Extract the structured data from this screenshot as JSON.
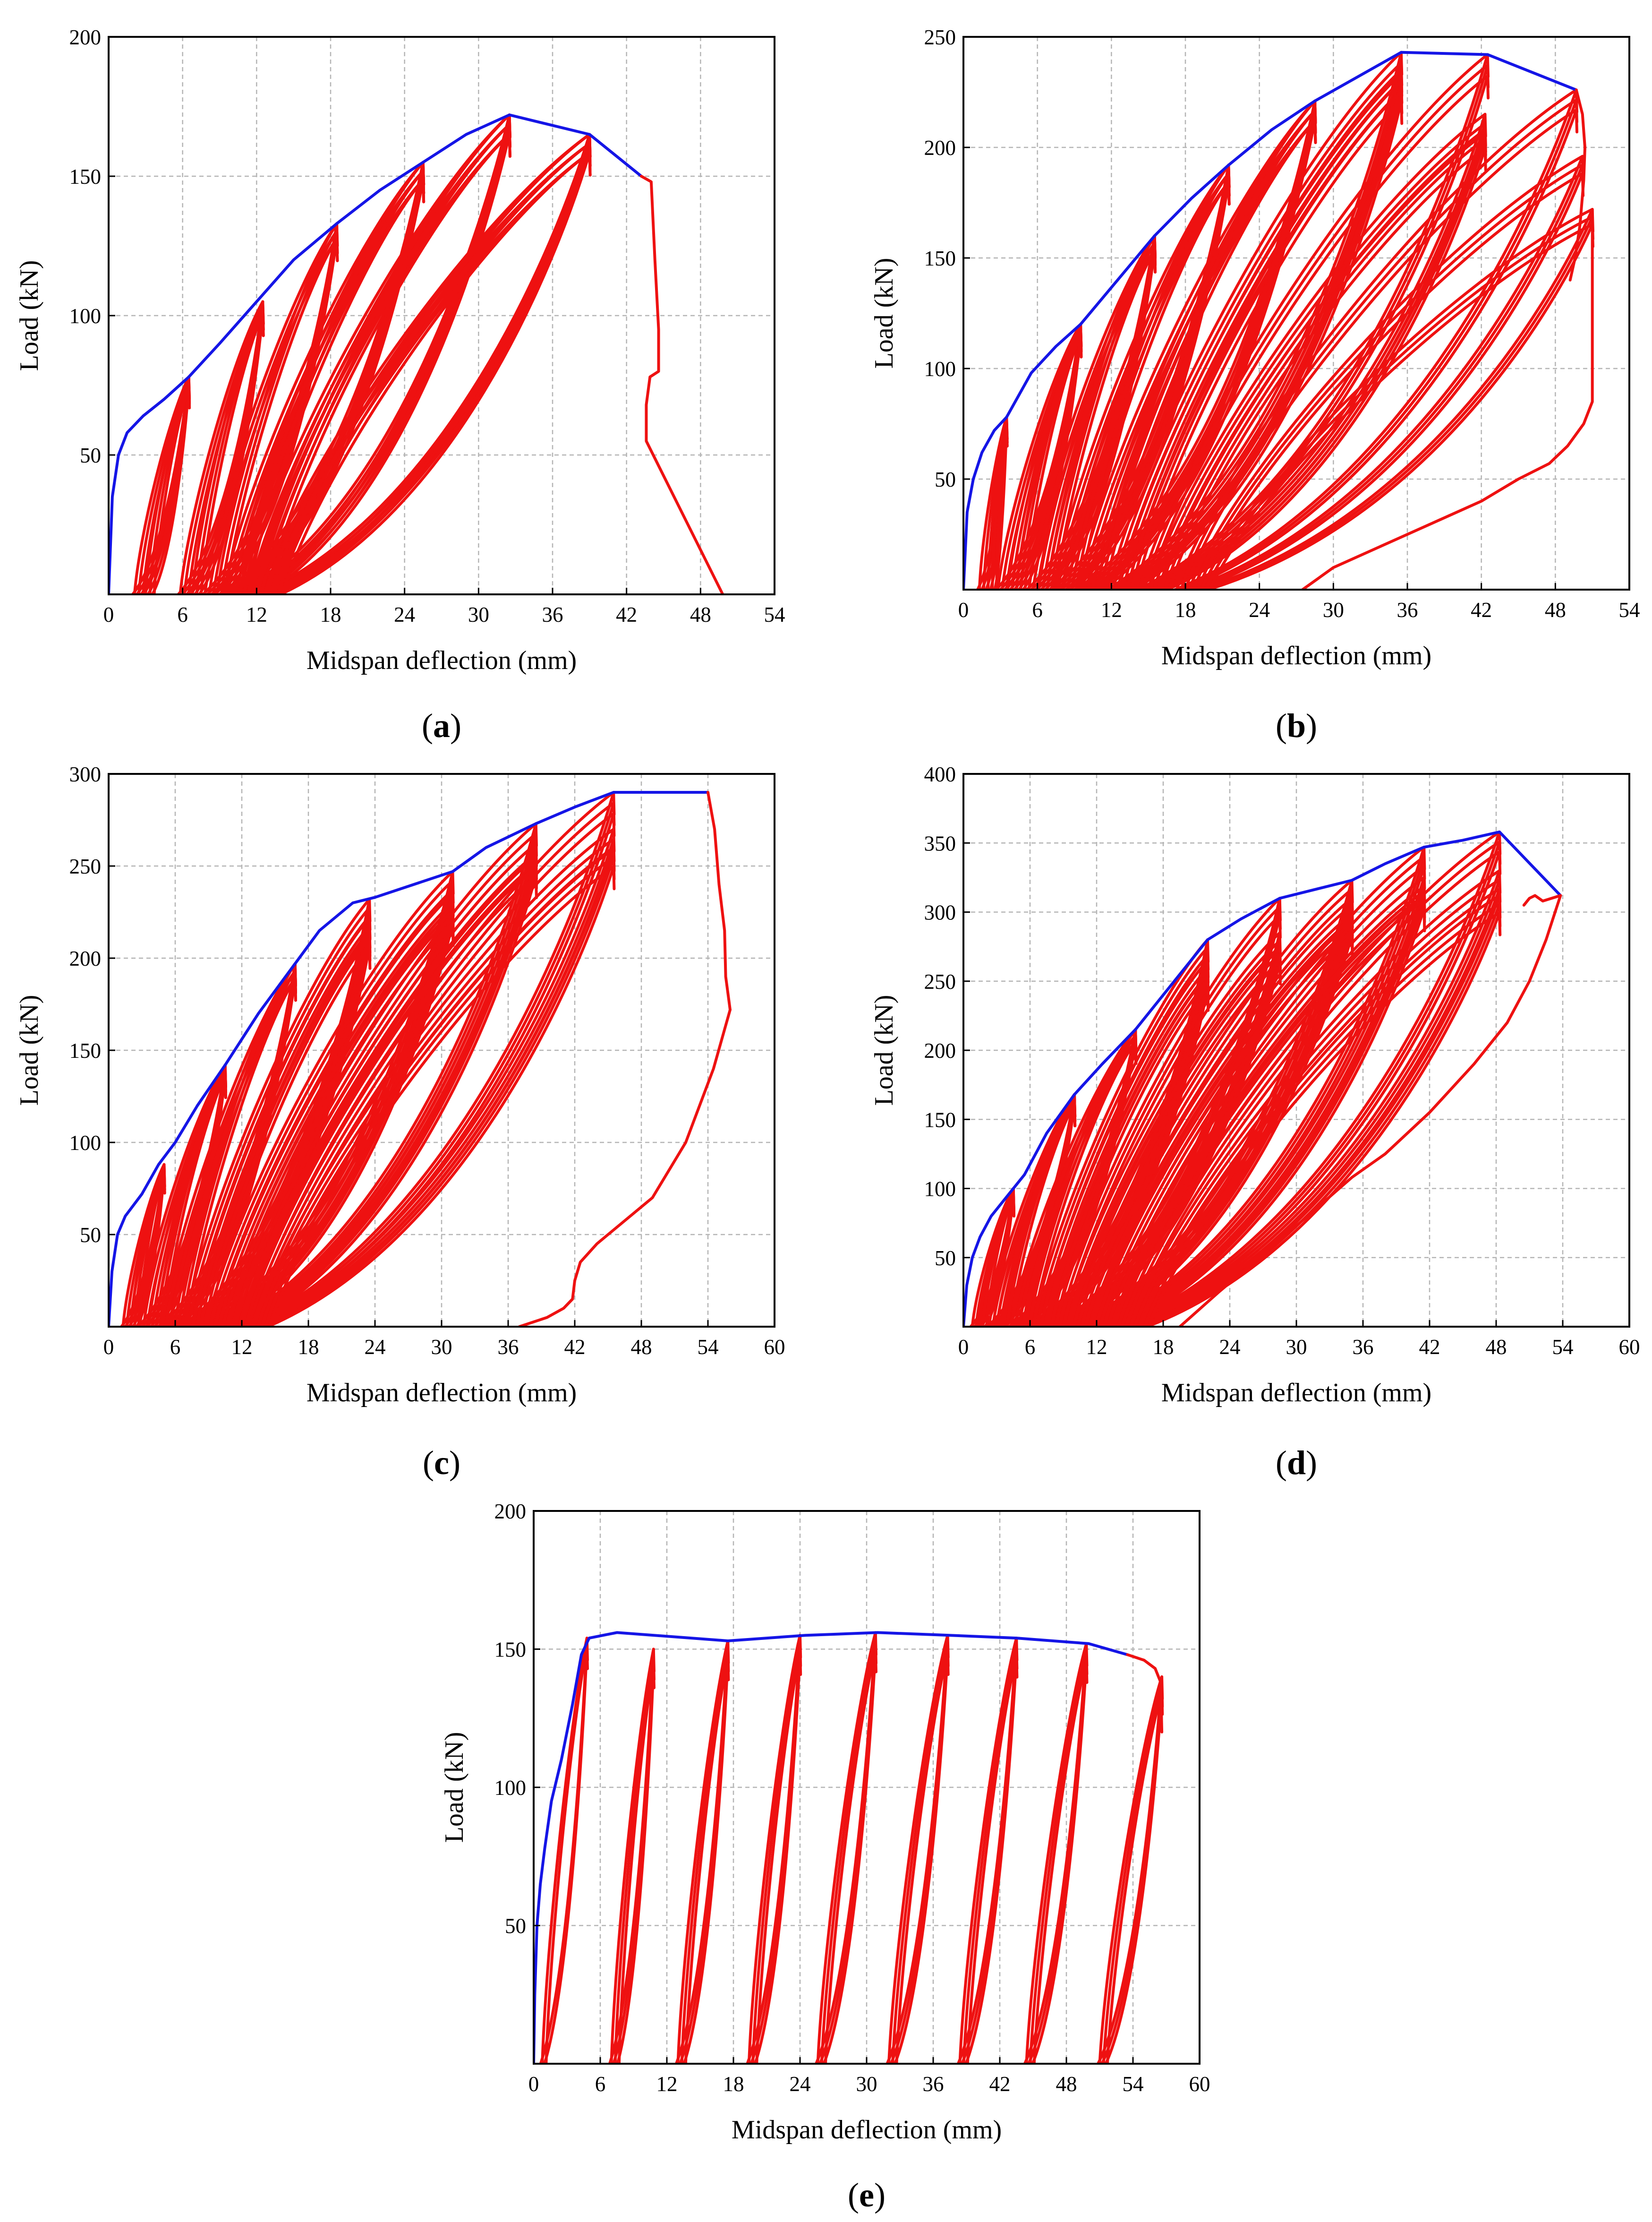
{
  "colors": {
    "hysteresis": "#ee1111",
    "envelope": "#1515e6",
    "grid": "#b5b5b5"
  },
  "chart_data": [
    {
      "id": "a",
      "type": "line",
      "panel_label": "a",
      "xlabel": "Midspan deflection (mm)",
      "ylabel": "Load (kN)",
      "xlim": [
        0,
        54
      ],
      "ylim": [
        0,
        200
      ],
      "xticks": [
        0,
        6,
        12,
        18,
        24,
        30,
        36,
        42,
        48,
        54
      ],
      "yticks": [
        50,
        100,
        150,
        200
      ],
      "series": [
        {
          "name": "Envelope",
          "x": [
            0,
            0.3,
            0.8,
            1.5,
            2.8,
            4.5,
            6.5,
            9,
            12,
            15,
            18.5,
            22,
            25.5,
            29,
            32.5,
            39,
            43.2
          ],
          "y": [
            0,
            35,
            50,
            58,
            64,
            70,
            78,
            90,
            105,
            120,
            133,
            145,
            155,
            165,
            172,
            165,
            150
          ]
        },
        {
          "name": "Softening",
          "x": [
            43.2,
            44,
            44.3,
            44.6,
            44.6,
            43.9,
            43.6,
            43.6,
            49.8
          ],
          "y": [
            150,
            148,
            120,
            95,
            80,
            78,
            68,
            55,
            0
          ]
        }
      ],
      "cycles": [
        [
          2.3,
          6.5,
          78,
          3
        ],
        [
          3.2,
          6.5,
          78,
          3
        ],
        [
          6.0,
          12.5,
          105,
          3
        ],
        [
          7.0,
          12.5,
          105,
          3
        ],
        [
          8.0,
          18.5,
          133,
          3
        ],
        [
          9.0,
          18.5,
          133,
          3
        ],
        [
          9.5,
          25.5,
          155,
          3
        ],
        [
          10.2,
          25.5,
          155,
          3
        ],
        [
          10.8,
          25.5,
          155,
          3
        ],
        [
          11.2,
          32.5,
          172,
          3
        ],
        [
          11.8,
          32.5,
          172,
          3
        ],
        [
          12.3,
          32.5,
          172,
          3
        ],
        [
          12.5,
          39,
          165,
          3
        ],
        [
          13.0,
          39,
          165,
          3
        ],
        [
          13.6,
          39,
          165,
          3
        ]
      ]
    },
    {
      "id": "b",
      "type": "line",
      "panel_label": "b",
      "xlabel": "Midspan deflection (mm)",
      "ylabel": "Load (kN)",
      "xlim": [
        0,
        54
      ],
      "ylim": [
        0,
        250
      ],
      "xticks": [
        0,
        6,
        12,
        18,
        24,
        30,
        36,
        42,
        48,
        54
      ],
      "yticks": [
        50,
        100,
        150,
        200,
        250
      ],
      "series": [
        {
          "name": "Envelope",
          "x": [
            0,
            0.3,
            0.8,
            1.5,
            2.5,
            3.5,
            5.5,
            7.5,
            9.5,
            12.5,
            15.5,
            18.5,
            21.5,
            25,
            28.5,
            32,
            35.5,
            42.5,
            49.7
          ],
          "y": [
            0,
            35,
            50,
            62,
            72,
            78,
            98,
            110,
            120,
            140,
            160,
            177,
            192,
            208,
            221,
            232,
            243,
            242,
            226
          ]
        },
        {
          "name": "Softening",
          "x": [
            49.7,
            50.2,
            50.4,
            50.3,
            50.0,
            49.6,
            49.2
          ],
          "y": [
            226,
            215,
            200,
            185,
            165,
            150,
            140
          ]
        },
        {
          "name": "Unload",
          "x": [
            51.0,
            51.0,
            50.3,
            49.0,
            47.5,
            45.0,
            42.0,
            38.0,
            34.0,
            30.0,
            27.5
          ],
          "y": [
            172,
            85,
            75,
            65,
            57,
            50,
            40,
            30,
            20,
            10,
            0
          ]
        }
      ],
      "cycles": [
        [
          1.5,
          3.5,
          78,
          3
        ],
        [
          2.2,
          3.5,
          78,
          3
        ],
        [
          3.0,
          9.5,
          120,
          3
        ],
        [
          3.8,
          9.5,
          120,
          3
        ],
        [
          4.5,
          9.5,
          120,
          3
        ],
        [
          5.5,
          15.5,
          160,
          3
        ],
        [
          6.3,
          15.5,
          160,
          3
        ],
        [
          7.0,
          15.5,
          160,
          3
        ],
        [
          7.5,
          21.5,
          192,
          3
        ],
        [
          8.3,
          21.5,
          192,
          3
        ],
        [
          9.0,
          21.5,
          192,
          3
        ],
        [
          9.5,
          28.5,
          221,
          3
        ],
        [
          10.3,
          28.5,
          221,
          3
        ],
        [
          11.0,
          28.5,
          221,
          3
        ],
        [
          12.0,
          35.5,
          243,
          3
        ],
        [
          12.8,
          35.5,
          235,
          3
        ],
        [
          13.5,
          35.5,
          230,
          3
        ],
        [
          14.5,
          42.5,
          242,
          3
        ],
        [
          15.3,
          42.3,
          215,
          3
        ],
        [
          16.2,
          42.3,
          208,
          3
        ],
        [
          17.5,
          49.7,
          226,
          3
        ],
        [
          18.5,
          50.2,
          196,
          3
        ],
        [
          19.5,
          51.0,
          172,
          3
        ]
      ]
    },
    {
      "id": "c",
      "type": "line",
      "panel_label": "c",
      "xlabel": "Midspan deflection (mm)",
      "ylabel": "Load (kN)",
      "xlim": [
        0,
        60
      ],
      "ylim": [
        0,
        300
      ],
      "xticks": [
        0,
        6,
        12,
        18,
        24,
        30,
        36,
        42,
        48,
        54,
        60
      ],
      "yticks": [
        50,
        100,
        150,
        200,
        250,
        300
      ],
      "series": [
        {
          "name": "Envelope",
          "x": [
            0,
            0.3,
            0.8,
            1.5,
            3,
            4.5,
            6,
            8,
            10.5,
            13.5,
            16.8,
            19,
            22,
            24,
            27.5,
            31,
            34,
            38.5,
            42,
            45.5,
            54.0
          ],
          "y": [
            0,
            30,
            50,
            60,
            72,
            88,
            100,
            120,
            142,
            170,
            197,
            215,
            230,
            233,
            240,
            247,
            260,
            273,
            282,
            290,
            290
          ]
        },
        {
          "name": "Softening",
          "x": [
            54.0,
            54.6,
            55.0,
            55.5,
            55.6,
            56.0
          ],
          "y": [
            290,
            270,
            240,
            215,
            190,
            172
          ]
        },
        {
          "name": "Unload",
          "x": [
            56.0,
            54.5,
            52.0,
            49.0,
            46.0,
            44.0,
            42.5,
            42.0,
            41.8,
            41.0,
            39.5,
            37.0
          ],
          "y": [
            172,
            140,
            100,
            70,
            55,
            45,
            35,
            25,
            15,
            10,
            5,
            0
          ]
        }
      ],
      "cycles": [
        [
          1.5,
          5.0,
          88,
          3
        ],
        [
          2.2,
          5.0,
          88,
          3
        ],
        [
          3.0,
          10.5,
          142,
          3
        ],
        [
          3.8,
          10.5,
          142,
          3
        ],
        [
          4.5,
          10.5,
          142,
          3
        ],
        [
          5.0,
          16.8,
          197,
          3
        ],
        [
          5.8,
          16.8,
          197,
          3
        ],
        [
          6.5,
          16.8,
          197,
          3
        ],
        [
          7.0,
          23.5,
          232,
          3
        ],
        [
          7.8,
          23.5,
          222,
          3
        ],
        [
          8.5,
          23.5,
          215,
          3
        ],
        [
          9.0,
          31.0,
          247,
          3
        ],
        [
          9.8,
          31.0,
          235,
          3
        ],
        [
          10.5,
          31.0,
          228,
          3
        ],
        [
          11.0,
          38.5,
          273,
          3
        ],
        [
          11.6,
          38.5,
          262,
          3
        ],
        [
          12.2,
          38.5,
          255,
          3
        ],
        [
          12.8,
          45.5,
          290,
          3
        ],
        [
          13.3,
          45.5,
          270,
          3
        ],
        [
          14.0,
          45.5,
          260,
          3
        ]
      ]
    },
    {
      "id": "d",
      "type": "line",
      "panel_label": "d",
      "xlabel": "Midspan deflection (mm)",
      "ylabel": "Load (kN)",
      "xlim": [
        0,
        60
      ],
      "ylim": [
        0,
        400
      ],
      "xticks": [
        0,
        6,
        12,
        18,
        24,
        30,
        36,
        42,
        48,
        54,
        60
      ],
      "yticks": [
        50,
        100,
        150,
        200,
        250,
        300,
        350,
        400
      ],
      "series": [
        {
          "name": "Envelope",
          "x": [
            0,
            0.3,
            0.8,
            1.5,
            2.5,
            4,
            5.5,
            7.5,
            10,
            12.5,
            15.5,
            19,
            22,
            25,
            28.5,
            31.5,
            35,
            38,
            41.5,
            45,
            48.3,
            53.8
          ],
          "y": [
            0,
            30,
            50,
            65,
            80,
            95,
            110,
            140,
            168,
            190,
            215,
            250,
            280,
            295,
            310,
            316,
            323,
            335,
            347,
            352,
            358,
            312
          ]
        },
        {
          "name": "Softening",
          "x": [
            53.8,
            53.0,
            52.2,
            51.5,
            51.0,
            50.5
          ],
          "y": [
            312,
            310,
            308,
            312,
            310,
            305
          ]
        },
        {
          "name": "Unload",
          "x": [
            53.8,
            52.5,
            51.0,
            49.0,
            46.0,
            42.0,
            38.0,
            35.0,
            31.0,
            27.0,
            23.0,
            19.5
          ],
          "y": [
            312,
            280,
            250,
            220,
            190,
            155,
            125,
            108,
            80,
            52,
            25,
            0
          ]
        }
      ],
      "cycles": [
        [
          1.0,
          4.5,
          100,
          3
        ],
        [
          1.6,
          4.5,
          100,
          3
        ],
        [
          2.5,
          10.0,
          168,
          3
        ],
        [
          3.2,
          10.0,
          168,
          3
        ],
        [
          3.8,
          10.0,
          168,
          3
        ],
        [
          4.5,
          15.5,
          215,
          3
        ],
        [
          5.2,
          15.5,
          215,
          3
        ],
        [
          5.8,
          15.5,
          215,
          3
        ],
        [
          6.5,
          22.0,
          280,
          3
        ],
        [
          7.2,
          22.0,
          265,
          3
        ],
        [
          7.8,
          22.0,
          255,
          3
        ],
        [
          8.5,
          28.5,
          310,
          3
        ],
        [
          9.2,
          28.5,
          285,
          3
        ],
        [
          9.8,
          28.5,
          275,
          3
        ],
        [
          10.5,
          35.0,
          323,
          3
        ],
        [
          11.2,
          35.0,
          305,
          3
        ],
        [
          11.8,
          35.0,
          295,
          3
        ],
        [
          12.5,
          41.5,
          347,
          3
        ],
        [
          13.2,
          41.5,
          325,
          3
        ],
        [
          13.8,
          41.5,
          315,
          3
        ],
        [
          14.5,
          48.3,
          358,
          3
        ],
        [
          15.3,
          48.3,
          330,
          3
        ],
        [
          16.2,
          48.3,
          312,
          3
        ]
      ]
    },
    {
      "id": "e",
      "type": "line",
      "panel_label": "e",
      "xlabel": "Midspan deflection (mm)",
      "ylabel": "Load (kN)",
      "xlim": [
        0,
        60
      ],
      "ylim": [
        0,
        200
      ],
      "xticks": [
        0,
        6,
        12,
        18,
        24,
        30,
        36,
        42,
        48,
        54,
        60
      ],
      "yticks": [
        50,
        100,
        150,
        200
      ],
      "series": [
        {
          "name": "Envelope",
          "x": [
            0,
            0.1,
            0.3,
            0.6,
            1.0,
            1.6,
            2.5,
            3.5,
            4.3,
            5.0,
            7.5,
            17.5,
            24.5,
            31.0,
            37.5,
            43.5,
            50.0,
            53.5
          ],
          "y": [
            0,
            25,
            50,
            65,
            78,
            95,
            110,
            130,
            148,
            154,
            156,
            153,
            155,
            156,
            155,
            154,
            152,
            148
          ]
        },
        {
          "name": "Softening",
          "x": [
            53.5,
            55.0,
            56.0,
            56.5,
            56.6
          ],
          "y": [
            148,
            146,
            143,
            138,
            120
          ]
        }
      ],
      "cycles": [
        [
          0.8,
          4.8,
          154,
          2
        ],
        [
          7.2,
          10.8,
          150,
          3
        ],
        [
          13.2,
          17.5,
          153,
          3
        ],
        [
          19.6,
          24.0,
          155,
          3
        ],
        [
          25.8,
          30.8,
          156,
          3
        ],
        [
          32.2,
          37.3,
          155,
          3
        ],
        [
          38.6,
          43.5,
          154,
          3
        ],
        [
          44.6,
          49.8,
          152,
          3
        ],
        [
          51.2,
          56.6,
          140,
          3
        ]
      ]
    }
  ]
}
